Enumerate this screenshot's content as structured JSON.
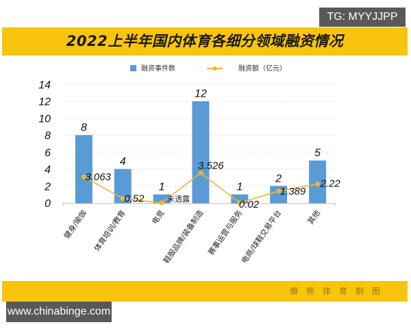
{
  "badges": {
    "tg": "TG: MYYJJPP",
    "url": "www.chinabinge.com"
  },
  "header": {
    "title": "2022上半年国内体育各细分领域融资情况"
  },
  "footer": {
    "credit": "懒熊体育制图"
  },
  "legend": {
    "bars": "融资事件数",
    "line": "融资额（亿元）"
  },
  "colors": {
    "banner": "#F8C40E",
    "bar": "#5B9BD5",
    "line": "#F0B72E",
    "badge": "#595959"
  },
  "chart_data": {
    "type": "bar",
    "title": "2022上半年国内体育各细分领域融资情况",
    "xlabel": "",
    "ylabel": "",
    "ylim": [
      0,
      14
    ],
    "yticks": [
      0,
      2,
      4,
      6,
      8,
      10,
      12,
      14
    ],
    "grid": true,
    "legend_position": "top",
    "categories": [
      "健身/瑜伽",
      "体育培训/教育",
      "电竞",
      "鞋服品牌/装备制造",
      "赛事运营与服务",
      "电商/球鞋交易平台",
      "其他"
    ],
    "series": [
      {
        "name": "融资事件数",
        "type": "bar",
        "values": [
          8,
          4,
          1,
          12,
          1,
          2,
          5
        ]
      },
      {
        "name": "融资额（亿元）",
        "type": "line",
        "values": [
          3.063,
          0.52,
          null,
          3.526,
          0.02,
          1.389,
          2.22
        ],
        "labels": [
          "3.063",
          "0.52",
          "未透露",
          "3.526",
          "0.02",
          "1.389",
          "2.22"
        ]
      }
    ]
  }
}
